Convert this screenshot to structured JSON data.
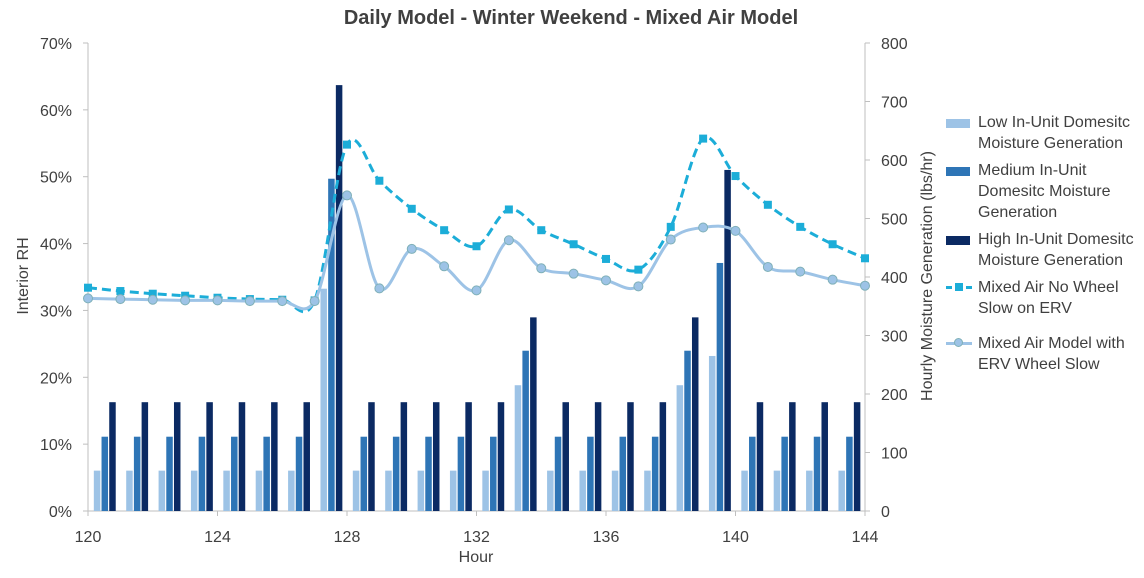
{
  "chart_data": {
    "type": "bar",
    "title": "Daily Model - Winter Weekend - Mixed Air Model",
    "xlabel": "Hour",
    "ylabel_left": "Interior RH",
    "ylabel_right": "Hourly Moisture Generation (lbs/hr)",
    "x_ticks": [
      120,
      124,
      128,
      132,
      136,
      140,
      144
    ],
    "xlim": [
      120,
      144
    ],
    "y_left_ticks": [
      "0%",
      "10%",
      "20%",
      "30%",
      "40%",
      "50%",
      "60%",
      "70%"
    ],
    "y_left_lim": [
      0,
      70
    ],
    "y_right_ticks": [
      "0",
      "100",
      "200",
      "300",
      "400",
      "500",
      "600",
      "700",
      "800"
    ],
    "y_right_lim": [
      0,
      800
    ],
    "legend_position": "right",
    "grid": false,
    "hours": [
      120,
      121,
      122,
      123,
      124,
      125,
      126,
      127,
      128,
      129,
      130,
      131,
      132,
      133,
      134,
      135,
      136,
      137,
      138,
      139,
      140,
      141,
      142,
      143
    ],
    "bar_series": [
      {
        "name": "Low In-Unit Domesitc Moisture Generation",
        "color": "#9dc3e6",
        "values": [
          69,
          69,
          69,
          69,
          69,
          69,
          69,
          380,
          69,
          69,
          69,
          69,
          69,
          215,
          69,
          69,
          69,
          69,
          215,
          265,
          69,
          69,
          69,
          69
        ]
      },
      {
        "name": "Medium In-Unit Domesitc Moisture Generation",
        "color": "#2e75b6",
        "values": [
          127,
          127,
          127,
          127,
          127,
          127,
          127,
          568,
          127,
          127,
          127,
          127,
          127,
          274,
          127,
          127,
          127,
          127,
          274,
          424,
          127,
          127,
          127,
          127
        ]
      },
      {
        "name": "High In-Unit Domesitc Moisture Generation",
        "color": "#0b2a63",
        "values": [
          186,
          186,
          186,
          186,
          186,
          186,
          186,
          728,
          186,
          186,
          186,
          186,
          186,
          331,
          186,
          186,
          186,
          186,
          331,
          583,
          186,
          186,
          186,
          186
        ]
      }
    ],
    "line_series": [
      {
        "name": "Mixed Air No Wheel Slow on ERV",
        "color": "#1cadd8",
        "marker": "square",
        "style": "dashed",
        "x": [
          120,
          121,
          122,
          123,
          124,
          125,
          126,
          127,
          128,
          129,
          130,
          131,
          132,
          133,
          134,
          135,
          136,
          137,
          138,
          139,
          140,
          141,
          142,
          143,
          144
        ],
        "values": [
          33.4,
          32.9,
          32.5,
          32.2,
          31.9,
          31.7,
          31.6,
          31.5,
          54.8,
          49.4,
          45.2,
          42.0,
          39.6,
          45.1,
          42.0,
          39.9,
          37.7,
          36.1,
          42.5,
          55.7,
          50.1,
          45.8,
          42.5,
          39.9,
          37.8
        ]
      },
      {
        "name": "Mixed Air Model with ERV Wheel Slow",
        "color": "#9dc3e6",
        "marker": "circle",
        "style": "solid",
        "x": [
          120,
          121,
          122,
          123,
          124,
          125,
          126,
          127,
          128,
          129,
          130,
          131,
          132,
          133,
          134,
          135,
          136,
          137,
          138,
          139,
          140,
          141,
          142,
          143,
          144
        ],
        "values": [
          31.8,
          31.7,
          31.6,
          31.5,
          31.5,
          31.4,
          31.4,
          31.4,
          47.2,
          33.3,
          39.2,
          36.6,
          33.0,
          40.5,
          36.3,
          35.5,
          34.5,
          33.6,
          40.6,
          42.4,
          41.9,
          36.5,
          35.8,
          34.6,
          33.7
        ]
      }
    ]
  }
}
